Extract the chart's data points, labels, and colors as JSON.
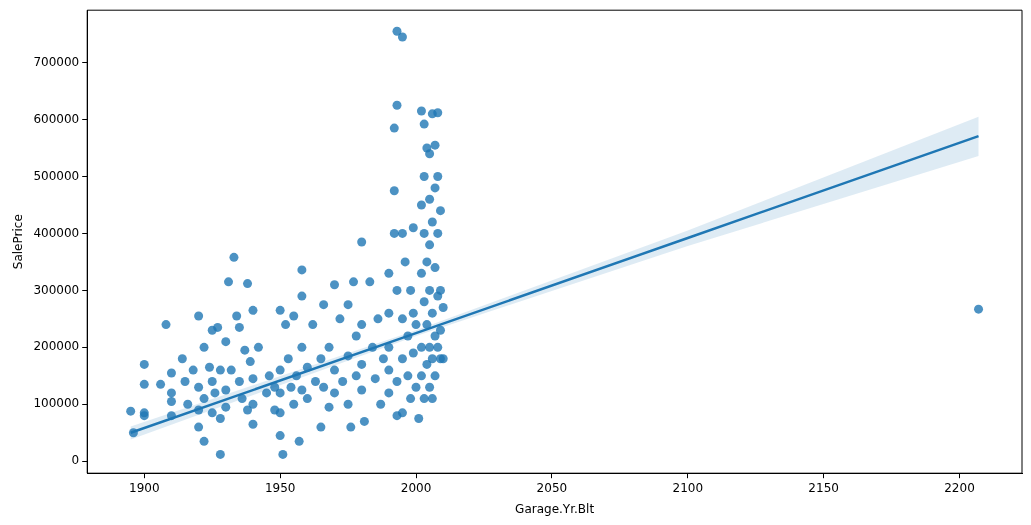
{
  "chart_data": {
    "type": "scatter",
    "xlabel": "Garage.Yr.Blt",
    "ylabel": "SalePrice",
    "xlim": [
      1879,
      2223
    ],
    "ylim": [
      -21000,
      792000
    ],
    "xticks": [
      1900,
      1950,
      2000,
      2050,
      2100,
      2150,
      2200
    ],
    "yticks": [
      0,
      100000,
      200000,
      300000,
      400000,
      500000,
      600000,
      700000
    ],
    "grid": false,
    "legend": false,
    "series": [
      {
        "marker": "circle",
        "color": "#1f77b4",
        "x": [
          1895,
          1896,
          1900,
          1900,
          1900,
          1900,
          1906,
          1908,
          1910,
          1910,
          1910,
          1910,
          1914,
          1915,
          1916,
          1918,
          1920,
          1920,
          1920,
          1920,
          1922,
          1922,
          1922,
          1924,
          1925,
          1925,
          1925,
          1926,
          1927,
          1928,
          1928,
          1928,
          1930,
          1930,
          1930,
          1931,
          1932,
          1933,
          1934,
          1935,
          1935,
          1936,
          1937,
          1938,
          1938,
          1939,
          1940,
          1940,
          1940,
          1940,
          1942,
          1945,
          1946,
          1948,
          1948,
          1950,
          1950,
          1950,
          1950,
          1950,
          1951,
          1952,
          1953,
          1954,
          1955,
          1955,
          1956,
          1957,
          1958,
          1958,
          1958,
          1958,
          1960,
          1960,
          1962,
          1963,
          1965,
          1965,
          1966,
          1966,
          1968,
          1968,
          1970,
          1970,
          1970,
          1972,
          1973,
          1975,
          1975,
          1975,
          1976,
          1977,
          1978,
          1978,
          1980,
          1980,
          1980,
          1980,
          1981,
          1983,
          1984,
          1985,
          1986,
          1987,
          1988,
          1990,
          1990,
          1990,
          1990,
          1990,
          1992,
          1992,
          1992,
          1993,
          1993,
          1993,
          1993,
          1993,
          1995,
          1995,
          1995,
          1995,
          1995,
          1996,
          1997,
          1997,
          1998,
          1998,
          1999,
          1999,
          1999,
          2000,
          2000,
          2001,
          2002,
          2002,
          2002,
          2002,
          2002,
          2003,
          2003,
          2003,
          2003,
          2003,
          2004,
          2004,
          2004,
          2004,
          2005,
          2005,
          2005,
          2005,
          2005,
          2005,
          2006,
          2006,
          2006,
          2006,
          2006,
          2007,
          2007,
          2007,
          2007,
          2007,
          2008,
          2008,
          2008,
          2008,
          2008,
          2009,
          2009,
          2009,
          2009,
          2010,
          2010,
          2207
        ],
        "values": [
          88000,
          50000,
          170000,
          135000,
          85000,
          80000,
          135000,
          240000,
          155000,
          120000,
          105000,
          80000,
          180000,
          140000,
          100000,
          160000,
          255000,
          130000,
          90000,
          60000,
          200000,
          110000,
          35000,
          165000,
          230000,
          140000,
          85000,
          120000,
          235000,
          12000,
          75000,
          160000,
          210000,
          125000,
          95000,
          315000,
          160000,
          358000,
          255000,
          235000,
          140000,
          110000,
          195000,
          312000,
          90000,
          175000,
          265000,
          145000,
          100000,
          65000,
          200000,
          120000,
          150000,
          90000,
          130000,
          265000,
          160000,
          120000,
          85000,
          45000,
          12000,
          240000,
          180000,
          130000,
          255000,
          100000,
          150000,
          35000,
          336000,
          290000,
          200000,
          125000,
          165000,
          110000,
          240000,
          140000,
          180000,
          60000,
          275000,
          130000,
          200000,
          95000,
          310000,
          160000,
          120000,
          250000,
          140000,
          275000,
          185000,
          100000,
          60000,
          315000,
          220000,
          150000,
          385000,
          240000,
          170000,
          125000,
          70000,
          315000,
          200000,
          145000,
          250000,
          100000,
          180000,
          330000,
          260000,
          200000,
          160000,
          120000,
          585000,
          475000,
          400000,
          755000,
          625000,
          300000,
          140000,
          80000,
          745000,
          400000,
          250000,
          180000,
          85000,
          350000,
          220000,
          150000,
          300000,
          110000,
          410000,
          260000,
          190000,
          130000,
          240000,
          75000,
          615000,
          450000,
          330000,
          200000,
          150000,
          592000,
          500000,
          400000,
          280000,
          110000,
          550000,
          350000,
          240000,
          170000,
          540000,
          460000,
          380000,
          300000,
          200000,
          130000,
          610000,
          420000,
          260000,
          180000,
          110000,
          555000,
          480000,
          340000,
          220000,
          150000,
          612000,
          500000,
          400000,
          290000,
          200000,
          440000,
          300000,
          230000,
          180000,
          270000,
          180000,
          267000
        ]
      },
      {
        "type": "line",
        "marker": "none",
        "color": "#1f77b4",
        "x": [
          1895,
          2000,
          2100,
          2207
        ],
        "values": [
          50000,
          225000,
          392000,
          571000
        ],
        "lower": [
          38000,
          220000,
          378000,
          536000
        ],
        "upper": [
          61000,
          230000,
          405000,
          605000
        ]
      }
    ]
  }
}
